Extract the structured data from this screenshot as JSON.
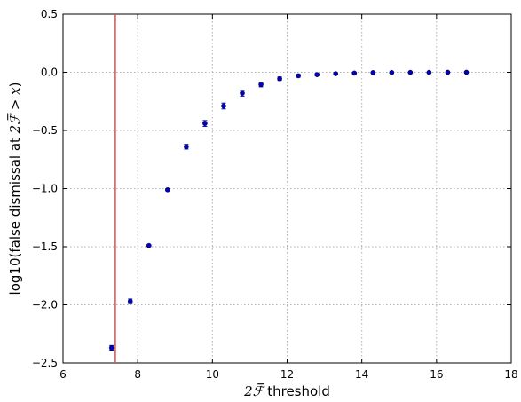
{
  "chart_data": {
    "type": "scatter",
    "xlabel_math": "2ℱ̅",
    "xlabel_text": " threshold",
    "ylabel_prefix": "log10(false dismissal at ",
    "ylabel_math": "2ℱ̅ > x",
    "ylabel_suffix": ")",
    "xlim": [
      6,
      18
    ],
    "ylim": [
      -2.5,
      0.5
    ],
    "xticks": [
      6,
      8,
      10,
      12,
      14,
      16,
      18
    ],
    "xtick_labels": [
      "6",
      "8",
      "10",
      "12",
      "14",
      "16",
      "18"
    ],
    "yticks": [
      0.5,
      0.0,
      -0.5,
      -1.0,
      -1.5,
      -2.0,
      -2.5
    ],
    "ytick_labels": [
      "0.5",
      "0.0",
      "−0.5",
      "−1.0",
      "−1.5",
      "−2.0",
      "−2.5"
    ],
    "grid": true,
    "vline": {
      "x": 7.4,
      "color": "#e8474a"
    },
    "marker_color": "#0000bf",
    "points": [
      {
        "x": 7.3,
        "y": -2.37,
        "err": 0.02
      },
      {
        "x": 7.8,
        "y": -1.97,
        "err": 0.02
      },
      {
        "x": 8.3,
        "y": -1.49,
        "err": 0.01
      },
      {
        "x": 8.8,
        "y": -1.01,
        "err": 0.01
      },
      {
        "x": 9.3,
        "y": -0.64,
        "err": 0.02
      },
      {
        "x": 9.8,
        "y": -0.44,
        "err": 0.025
      },
      {
        "x": 10.3,
        "y": -0.29,
        "err": 0.025
      },
      {
        "x": 10.8,
        "y": -0.18,
        "err": 0.025
      },
      {
        "x": 11.3,
        "y": -0.105,
        "err": 0.02
      },
      {
        "x": 11.8,
        "y": -0.055,
        "err": 0.015
      },
      {
        "x": 12.3,
        "y": -0.03,
        "err": 0.012
      },
      {
        "x": 12.8,
        "y": -0.02,
        "err": 0.01
      },
      {
        "x": 13.3,
        "y": -0.012,
        "err": 0.008
      },
      {
        "x": 13.8,
        "y": -0.007,
        "err": 0.006
      },
      {
        "x": 14.3,
        "y": -0.003,
        "err": 0.005
      },
      {
        "x": 14.8,
        "y": -0.002,
        "err": 0.004
      },
      {
        "x": 15.3,
        "y": -0.001,
        "err": 0.003
      },
      {
        "x": 15.8,
        "y": -0.001,
        "err": 0.003
      },
      {
        "x": 16.3,
        "y": 0.0,
        "err": 0.002
      },
      {
        "x": 16.8,
        "y": 0.0,
        "err": 0.002
      }
    ]
  }
}
